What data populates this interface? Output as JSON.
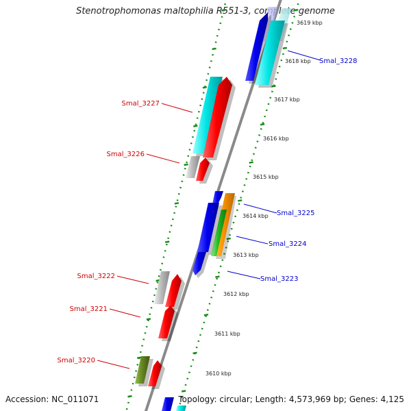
{
  "header": {
    "title": "Stenotrophomonas maltophilia R551-3, complete genome"
  },
  "footer": {
    "accession": "Accession: NC_011071",
    "topology": "Topology: circular; Length: 4,573,969 bp; Genes: 4,125"
  },
  "colors": {
    "backbone": "#8a8a8a",
    "tick": "#1a8a1a",
    "forward_label": "#cc0000",
    "reverse_label": "#0000cc",
    "gene_red": "#ff0000",
    "gene_blue": "#0000ee",
    "gene_cyan": "#00e5e5",
    "gene_grey": "#bbbbbb",
    "gene_orange": "#ff9900",
    "gene_green": "#22bb22",
    "gene_olive": "#668822"
  },
  "scale_labels": [
    "3619 kbp",
    "3618 kbp",
    "3617 kbp",
    "3616 kbp",
    "3615 kbp",
    "3614 kbp",
    "3613 kbp",
    "3612 kbp",
    "3611 kbp",
    "3610 kbp"
  ],
  "gene_labels": {
    "forward": [
      "Smal_3227",
      "Smal_3226",
      "Smal_3222",
      "Smal_3221",
      "Smal_3220"
    ],
    "reverse": [
      "Smal_3228",
      "Smal_3225",
      "Smal_3224",
      "Smal_3223"
    ]
  }
}
